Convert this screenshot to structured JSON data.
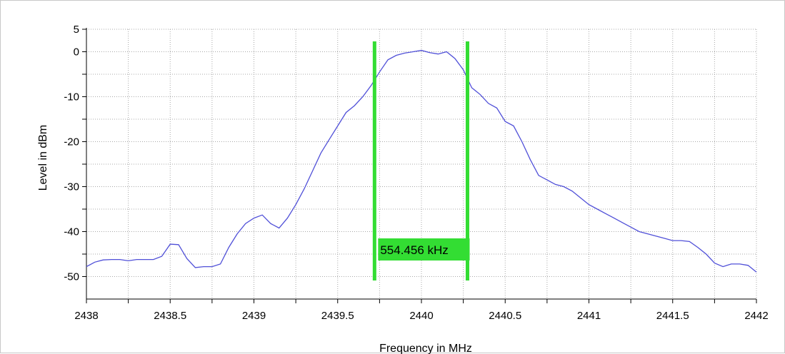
{
  "chart_data": {
    "type": "line",
    "xlabel": "Frequency in MHz",
    "ylabel": "Level in dBm",
    "xlim": [
      2438,
      2442
    ],
    "ylim": [
      -55,
      5
    ],
    "x_ticks": [
      {
        "value": 2438,
        "label": "2438"
      },
      {
        "value": 2438.5,
        "label": "2438.5"
      },
      {
        "value": 2439,
        "label": "2439"
      },
      {
        "value": 2439.5,
        "label": "2439.5"
      },
      {
        "value": 2440,
        "label": "2440"
      },
      {
        "value": 2440.5,
        "label": "2440.5"
      },
      {
        "value": 2441,
        "label": "2441"
      },
      {
        "value": 2441.5,
        "label": "2441.5"
      },
      {
        "value": 2442,
        "label": "2442"
      }
    ],
    "y_ticks": [
      {
        "value": 5,
        "label": "5"
      },
      {
        "value": 0,
        "label": "0"
      },
      {
        "value": -10,
        "label": "-10"
      },
      {
        "value": -20,
        "label": "-20"
      },
      {
        "value": -30,
        "label": "-30"
      },
      {
        "value": -40,
        "label": "-40"
      },
      {
        "value": -50,
        "label": "-50"
      }
    ],
    "grid": true,
    "series_color": "#5050d8",
    "marker_color": "#33dd33",
    "series": [
      {
        "x": [
          2438.0,
          2438.05,
          2438.1,
          2438.15,
          2438.2,
          2438.25,
          2438.3,
          2438.35,
          2438.4,
          2438.45,
          2438.5,
          2438.55,
          2438.6,
          2438.65,
          2438.7,
          2438.75,
          2438.8,
          2438.85,
          2438.9,
          2438.95,
          2439.0,
          2439.05,
          2439.1,
          2439.15,
          2439.2,
          2439.25,
          2439.3,
          2439.35,
          2439.4,
          2439.45,
          2439.5,
          2439.55,
          2439.6,
          2439.65,
          2439.7,
          2439.75,
          2439.8,
          2439.85,
          2439.9,
          2439.95,
          2440.0,
          2440.05,
          2440.1,
          2440.15,
          2440.2,
          2440.25,
          2440.3,
          2440.35,
          2440.4,
          2440.45,
          2440.5,
          2440.55,
          2440.6,
          2440.65,
          2440.7,
          2440.75,
          2440.8,
          2440.85,
          2440.9,
          2440.95,
          2441.0,
          2441.05,
          2441.1,
          2441.15,
          2441.2,
          2441.25,
          2441.3,
          2441.35,
          2441.4,
          2441.45,
          2441.5,
          2441.55,
          2441.6,
          2441.65,
          2441.7,
          2441.75,
          2441.8,
          2441.85,
          2441.9,
          2441.95,
          2442.0
        ],
        "y": [
          -47.8,
          -46.8,
          -46.3,
          -46.2,
          -46.2,
          -46.5,
          -46.2,
          -46.2,
          -46.2,
          -45.5,
          -42.8,
          -42.9,
          -46.0,
          -48.0,
          -47.8,
          -47.8,
          -47.2,
          -43.5,
          -40.5,
          -38.2,
          -37.0,
          -36.3,
          -38.2,
          -39.2,
          -37.0,
          -34.0,
          -30.5,
          -26.5,
          -22.5,
          -19.5,
          -16.5,
          -13.5,
          -12.0,
          -10.0,
          -7.5,
          -4.5,
          -1.8,
          -0.8,
          -0.3,
          0.0,
          0.3,
          -0.2,
          -0.5,
          0.0,
          -1.5,
          -4.0,
          -8.0,
          -9.5,
          -11.5,
          -12.5,
          -15.5,
          -16.5,
          -20.0,
          -24.0,
          -27.5,
          -28.5,
          -29.5,
          -30.0,
          -31.0,
          -32.5,
          -34.0,
          -35.0,
          -36.0,
          -37.0,
          -38.0,
          -39.0,
          -40.0,
          -40.5,
          -41.0,
          -41.5,
          -42.0,
          -42.0,
          -42.2,
          -43.5,
          -45.0,
          -47.0,
          -47.8,
          -47.2,
          -47.2,
          -47.5,
          -49.0
        ]
      }
    ],
    "markers": [
      {
        "x": 2439.72
      },
      {
        "x": 2440.275
      }
    ],
    "marker_label": "554.456 kHz"
  }
}
